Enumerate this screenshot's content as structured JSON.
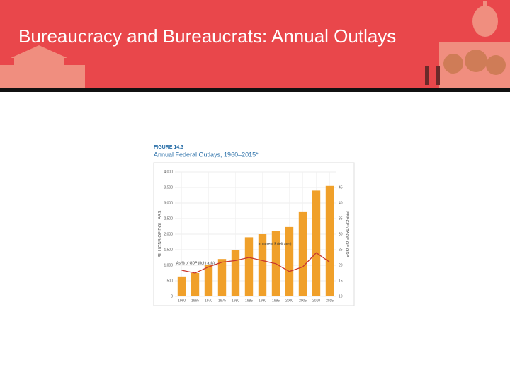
{
  "slide_title": "Bureaucracy and Bureaucrats: Annual Outlays",
  "chart_data": {
    "type": "bar",
    "figure_label": "FIGURE 14.3",
    "title": "Annual Federal Outlays, 1960–2015*",
    "y_label": "BILLIONS OF DOLLARS",
    "y2_label": "PERCENTAGE OF GDP",
    "categories": [
      "1960",
      "1965",
      "1970",
      "1975",
      "1980",
      "1985",
      "1990",
      "1995",
      "2000",
      "2005",
      "2010",
      "2015"
    ],
    "series": [
      {
        "name": "In current $ (left axis)",
        "color": "#f0a02a",
        "values": [
          640,
          750,
          1000,
          1200,
          1500,
          1900,
          2000,
          2100,
          2230,
          2730,
          3400,
          3550
        ]
      },
      {
        "name": "As % of GDP (right axis)",
        "type": "line",
        "axis": "y2",
        "color": "#c8372d",
        "values": [
          18.4,
          17.5,
          19.5,
          21,
          21.5,
          22.5,
          21.5,
          20.5,
          18,
          19.5,
          24,
          21
        ]
      }
    ],
    "ylim": [
      0,
      4000
    ],
    "yticks": [
      0,
      500,
      {
        "value": 1000,
        "label": "1,000"
      },
      {
        "value": 1500,
        "label": "1,500"
      },
      {
        "value": 2000,
        "label": "2,000"
      },
      {
        "value": 2500,
        "label": "2,500"
      },
      {
        "value": 3000,
        "label": "3,000"
      },
      {
        "value": 3500,
        "label": "3,500"
      },
      {
        "value": 4000,
        "label": "4,000"
      }
    ],
    "y2lim": [
      10,
      50
    ],
    "y2ticks": [
      10,
      15,
      20,
      25,
      30,
      35,
      40,
      45
    ],
    "grid": true
  }
}
